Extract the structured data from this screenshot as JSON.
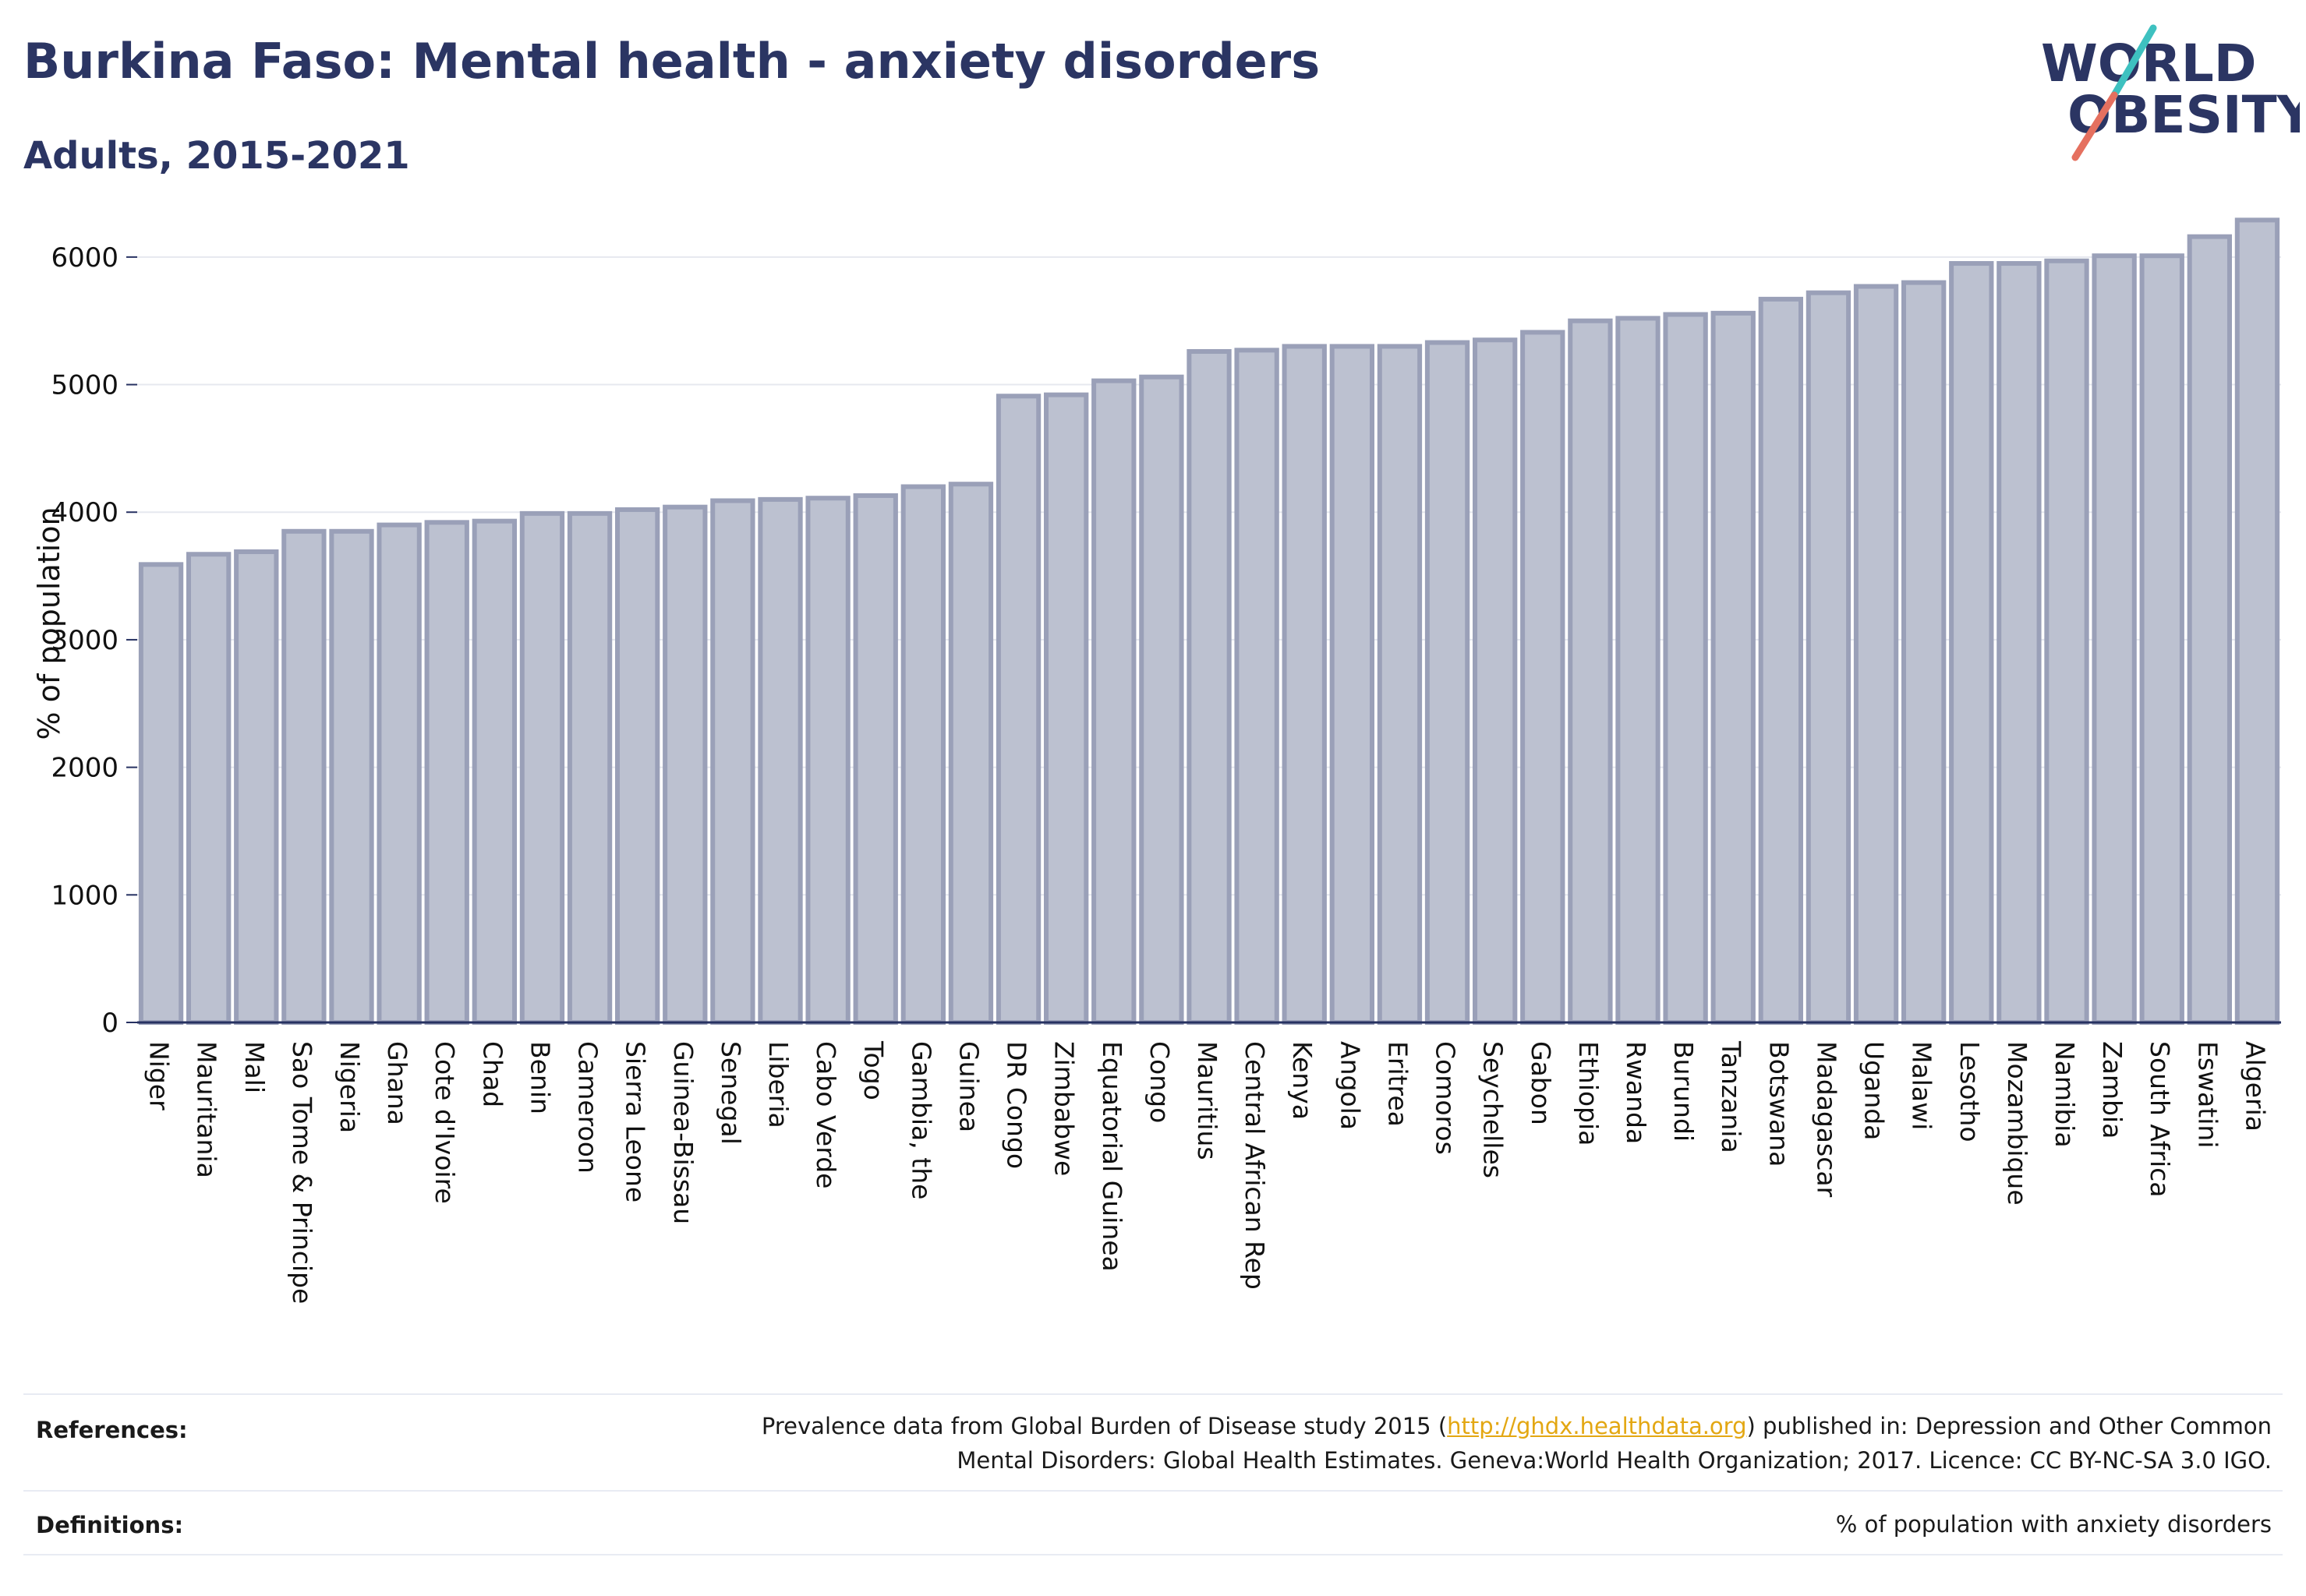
{
  "header": {
    "title": "Burkina Faso: Mental health - anxiety disorders",
    "subtitle": "Adults, 2015-2021"
  },
  "logo": {
    "line1": "WORLD",
    "line2": "OBESITY",
    "text_color": "#2b3563",
    "slash_teal": "#3ec1c0",
    "slash_coral": "#e5705f"
  },
  "chart_data": {
    "type": "bar",
    "ylabel": "% of population",
    "xlabel": "",
    "ylim": [
      0,
      6500
    ],
    "yticks": [
      0,
      1000,
      2000,
      3000,
      4000,
      5000,
      6000
    ],
    "grid": true,
    "bar_fill": "#bcc1d0",
    "bar_stroke": "#9aa0b8",
    "categories": [
      "Niger",
      "Mauritania",
      "Mali",
      "Sao Tome & Principe",
      "Nigeria",
      "Ghana",
      "Cote d'Ivoire",
      "Chad",
      "Benin",
      "Cameroon",
      "Sierra Leone",
      "Guinea-Bissau",
      "Senegal",
      "Liberia",
      "Cabo Verde",
      "Togo",
      "Gambia, the",
      "Guinea",
      "DR Congo",
      "Zimbabwe",
      "Equatorial Guinea",
      "Congo",
      "Mauritius",
      "Central African Rep",
      "Kenya",
      "Angola",
      "Eritrea",
      "Comoros",
      "Seychelles",
      "Gabon",
      "Ethiopia",
      "Rwanda",
      "Burundi",
      "Tanzania",
      "Botswana",
      "Madagascar",
      "Uganda",
      "Malawi",
      "Lesotho",
      "Mozambique",
      "Namibia",
      "Zambia",
      "South Africa",
      "Eswatini",
      "Algeria"
    ],
    "values": [
      3590,
      3670,
      3690,
      3850,
      3850,
      3900,
      3920,
      3930,
      3990,
      3990,
      4020,
      4040,
      4090,
      4100,
      4110,
      4130,
      4200,
      4220,
      4910,
      4920,
      5030,
      5060,
      5260,
      5270,
      5300,
      5300,
      5300,
      5330,
      5350,
      5410,
      5500,
      5520,
      5550,
      5560,
      5670,
      5720,
      5770,
      5800,
      5950,
      5950,
      5970,
      6010,
      6010,
      6160,
      6290
    ]
  },
  "footer": {
    "references_label": "References:",
    "references_pre": "Prevalence data from Global Burden of Disease study 2015 (",
    "references_link": "http://ghdx.healthdata.org",
    "references_post": ") published in: Depression and Other Common",
    "references_line2": "Mental Disorders: Global Health Estimates. Geneva:World Health Organization; 2017. Licence: CC BY-NC-SA 3.0 IGO.",
    "definitions_label": "Definitions:",
    "definitions_text": "% of population with anxiety disorders"
  }
}
